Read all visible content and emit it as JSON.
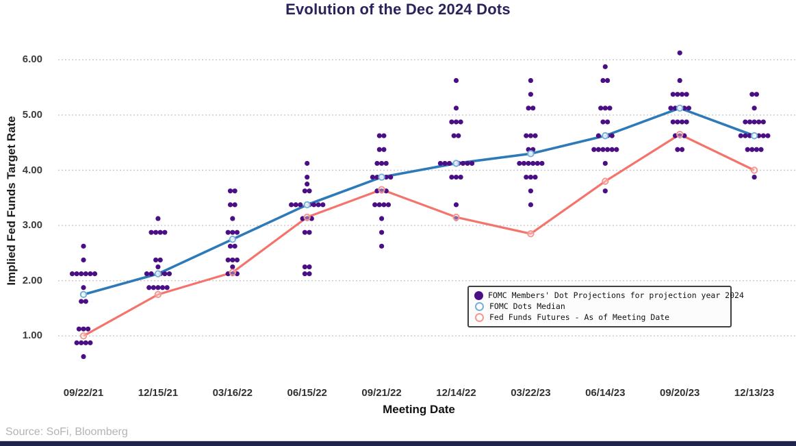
{
  "title": "Evolution of the Dec 2024 Dots",
  "source_note": "Source: SoFi, Bloomberg",
  "colors": {
    "title_text": "#29235c",
    "dot_purple": "#4a0f85",
    "median_blue_line": "#2e7ab8",
    "median_blue_ring": "#74b1da",
    "futures_red_line": "#f4736b",
    "futures_red_ring": "#f59790",
    "gridline": "#c9c9c9",
    "bottom_band": "#20244d"
  },
  "legend": {
    "items": [
      {
        "label": "FOMC Members' Dot Projections for projection year 2024",
        "marker": "filled-purple-dot"
      },
      {
        "label": "FOMC Dots Median",
        "marker": "open-blue-circle"
      },
      {
        "label": "Fed Funds Futures - As of Meeting Date",
        "marker": "open-red-circle"
      }
    ]
  },
  "chart_data": {
    "type": "scatter",
    "title": "Evolution of the Dec 2024 Dots",
    "xlabel": "Meeting Date",
    "ylabel": "Implied Fed Funds Target Rate",
    "ylim": [
      0.4,
      6.4
    ],
    "ytick_values": [
      6,
      5,
      4,
      3,
      2,
      1
    ],
    "ytick_labels": [
      "6.00",
      "5.00",
      "4.00",
      "3.00",
      "2.00",
      "1.00"
    ],
    "grid": "horizontal-dashed",
    "legend_position": "right-center-box",
    "categories": [
      "09/22/21",
      "12/15/21",
      "03/16/22",
      "06/15/22",
      "09/21/22",
      "12/14/22",
      "03/22/23",
      "06/14/23",
      "09/20/23",
      "12/13/23"
    ],
    "dot_distributions": [
      [
        [
          2.625,
          1
        ],
        [
          2.375,
          1
        ],
        [
          2.125,
          6
        ],
        [
          1.875,
          1
        ],
        [
          1.625,
          2
        ],
        [
          1.125,
          3
        ],
        [
          0.875,
          4
        ],
        [
          0.625,
          1
        ]
      ],
      [
        [
          3.125,
          1
        ],
        [
          2.875,
          4
        ],
        [
          2.375,
          2
        ],
        [
          2.25,
          1
        ],
        [
          2.125,
          5
        ],
        [
          1.875,
          5
        ]
      ],
      [
        [
          3.625,
          2
        ],
        [
          3.375,
          2
        ],
        [
          3.125,
          1
        ],
        [
          2.875,
          3
        ],
        [
          2.625,
          2
        ],
        [
          2.375,
          3
        ],
        [
          2.25,
          1
        ],
        [
          2.125,
          3
        ]
      ],
      [
        [
          4.125,
          1
        ],
        [
          3.875,
          1
        ],
        [
          3.75,
          1
        ],
        [
          3.625,
          2
        ],
        [
          3.375,
          7
        ],
        [
          3.125,
          3
        ],
        [
          2.875,
          2
        ],
        [
          2.25,
          2
        ],
        [
          2.125,
          2
        ]
      ],
      [
        [
          4.625,
          2
        ],
        [
          4.375,
          2
        ],
        [
          4.125,
          3
        ],
        [
          3.875,
          4
        ],
        [
          3.625,
          3
        ],
        [
          3.375,
          4
        ],
        [
          3.125,
          1
        ],
        [
          2.875,
          1
        ],
        [
          2.625,
          1
        ]
      ],
      [
        [
          5.625,
          1
        ],
        [
          5.125,
          1
        ],
        [
          4.875,
          3
        ],
        [
          4.625,
          2
        ],
        [
          4.125,
          7
        ],
        [
          3.875,
          3
        ],
        [
          3.375,
          1
        ],
        [
          3.125,
          1
        ]
      ],
      [
        [
          5.625,
          1
        ],
        [
          5.375,
          1
        ],
        [
          5.125,
          2
        ],
        [
          4.625,
          3
        ],
        [
          4.375,
          2
        ],
        [
          4.125,
          6
        ],
        [
          3.875,
          3
        ],
        [
          3.625,
          1
        ],
        [
          3.375,
          1
        ]
      ],
      [
        [
          5.875,
          1
        ],
        [
          5.625,
          2
        ],
        [
          5.125,
          3
        ],
        [
          4.875,
          2
        ],
        [
          4.625,
          3
        ],
        [
          4.375,
          6
        ],
        [
          4.125,
          1
        ],
        [
          3.625,
          1
        ]
      ],
      [
        [
          6.125,
          1
        ],
        [
          5.625,
          1
        ],
        [
          5.375,
          4
        ],
        [
          5.125,
          4
        ],
        [
          4.875,
          4
        ],
        [
          4.625,
          3
        ],
        [
          4.375,
          2
        ]
      ],
      [
        [
          5.375,
          2
        ],
        [
          5.125,
          1
        ],
        [
          4.875,
          5
        ],
        [
          4.625,
          6
        ],
        [
          4.375,
          4
        ],
        [
          3.875,
          1
        ]
      ]
    ],
    "series": [
      {
        "name": "FOMC Dots Median",
        "style": "line-open-circle",
        "color": "#2e7ab8",
        "values": [
          1.75,
          2.125,
          2.75,
          3.375,
          3.875,
          4.125,
          4.3,
          4.625,
          5.125,
          4.625
        ]
      },
      {
        "name": "Fed Funds Futures - As of Meeting Date",
        "style": "line-open-circle",
        "color": "#f4736b",
        "values": [
          1.0,
          1.75,
          2.15,
          3.15,
          3.65,
          3.15,
          2.85,
          3.8,
          4.65,
          4.0
        ]
      }
    ]
  }
}
